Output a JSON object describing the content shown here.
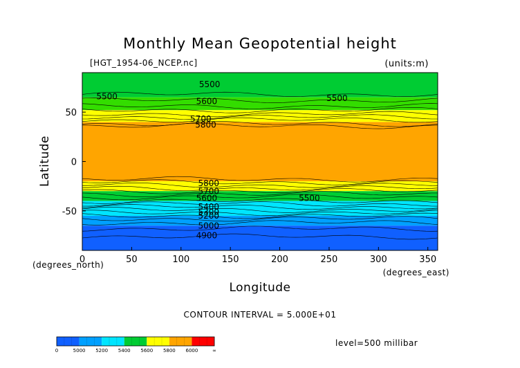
{
  "chart_data": {
    "type": "heatmap",
    "title": "Monthly Mean Geopotential height",
    "file_label": "[HGT_1954-06_NCEP.nc]",
    "units_label": "(units:m)",
    "xlabel": "Longitude",
    "x_unit_label": "(degrees_east)",
    "ylabel": "Latitude",
    "y_unit_label": "(degrees_north)",
    "xlim": [
      0,
      360
    ],
    "ylim": [
      -90,
      90
    ],
    "x_ticks": [
      0,
      50,
      100,
      150,
      200,
      250,
      300,
      350
    ],
    "y_ticks": [
      50,
      0,
      -50
    ],
    "contour_interval_text": "CONTOUR INTERVAL = 5.000E+01",
    "level_text": "level=500 millibar",
    "zonal_bands": [
      {
        "lat_from": 90,
        "lat_to": 65,
        "value_range": [
          5400,
          5500
        ],
        "color": "#00cc33"
      },
      {
        "lat_from": 65,
        "lat_to": 52,
        "value_range": [
          5500,
          5600
        ],
        "color": "#33dd00"
      },
      {
        "lat_from": 52,
        "lat_to": 40,
        "value_range": [
          5600,
          5800
        ],
        "color": "#ffff00"
      },
      {
        "lat_from": 40,
        "lat_to": -20,
        "value_range": [
          5800,
          5900
        ],
        "color": "#ffa500"
      },
      {
        "lat_from": -20,
        "lat_to": -30,
        "value_range": [
          5600,
          5800
        ],
        "color": "#ffff00"
      },
      {
        "lat_from": -30,
        "lat_to": -40,
        "value_range": [
          5500,
          5600
        ],
        "color": "#00cc33"
      },
      {
        "lat_from": -40,
        "lat_to": -55,
        "value_range": [
          5200,
          5500
        ],
        "color": "#00e5ff"
      },
      {
        "lat_from": -55,
        "lat_to": -65,
        "value_range": [
          5000,
          5200
        ],
        "color": "#00a0ff"
      },
      {
        "lat_from": -65,
        "lat_to": -90,
        "value_range": [
          4900,
          5000
        ],
        "color": "#1060ff"
      }
    ],
    "contour_labels": [
      {
        "text": "5500",
        "lon": 129,
        "lat": 78
      },
      {
        "text": "5500",
        "lon": 25,
        "lat": 66
      },
      {
        "text": "5500",
        "lon": 258,
        "lat": 64
      },
      {
        "text": "5600",
        "lon": 126,
        "lat": 61
      },
      {
        "text": "5700",
        "lon": 120,
        "lat": 43
      },
      {
        "text": "5800",
        "lon": 125,
        "lat": 37
      },
      {
        "text": "5800",
        "lon": 128,
        "lat": -22
      },
      {
        "text": "5700",
        "lon": 128,
        "lat": -30
      },
      {
        "text": "5600",
        "lon": 126,
        "lat": -37
      },
      {
        "text": "5500",
        "lon": 230,
        "lat": -37
      },
      {
        "text": "5400",
        "lon": 128,
        "lat": -46
      },
      {
        "text": "5300",
        "lon": 128,
        "lat": -51
      },
      {
        "text": "5200",
        "lon": 128,
        "lat": -55
      },
      {
        "text": "5000",
        "lon": 128,
        "lat": -65
      },
      {
        "text": "4900",
        "lon": 126,
        "lat": -75
      }
    ],
    "colorbar": {
      "labels": [
        "0",
        "5000",
        "5200",
        "5400",
        "5600",
        "5800",
        "6000",
        "∞"
      ],
      "colors": [
        "#1060ff",
        "#00a0ff",
        "#00e5ff",
        "#00cc33",
        "#ffff00",
        "#ffa500",
        "#ff0000"
      ]
    }
  }
}
